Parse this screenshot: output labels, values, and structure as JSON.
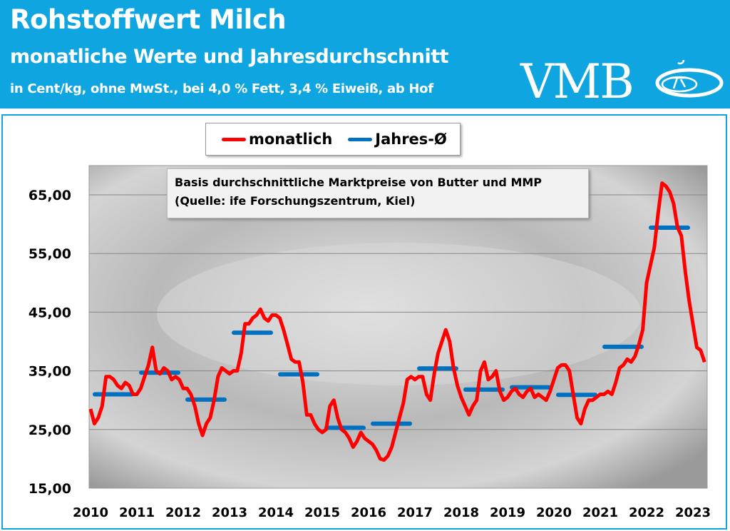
{
  "header": {
    "title": "Rohstoffwert Milch",
    "subtitle": "monatliche Werte und Jahresdurchschnitt",
    "unit_line": "in Cent/kg, ohne MwSt., bei 4,0 % Fett, 3,4 % Eiweiß, ab Hof",
    "logo": "VMB"
  },
  "colors": {
    "header": "#0ea5e0",
    "monthly": "#ff0000",
    "annual": "#0070c0"
  },
  "chart_data": {
    "type": "line",
    "note_lines": [
      "Basis durchschnittliche Marktpreise von Butter und MMP",
      "(Quelle: ife Forschungszentrum, Kiel)"
    ],
    "legend": {
      "placement": "top",
      "entries": [
        "monatlich",
        "Jahres-Ø"
      ]
    },
    "ylim": [
      15,
      70
    ],
    "yticks": [
      "15,00",
      "25,00",
      "35,00",
      "45,00",
      "55,00",
      "65,00"
    ],
    "ytick_values": [
      15,
      25,
      35,
      45,
      55,
      65
    ],
    "xticks": [
      "2010",
      "2011",
      "2012",
      "2013",
      "2014",
      "2015",
      "2016",
      "2017",
      "2018",
      "2019",
      "2020",
      "2021",
      "2022",
      "2023"
    ],
    "grid": true,
    "series": [
      {
        "name": "monatlich",
        "start": "2010-01",
        "frequency": "monthly",
        "values": [
          28.5,
          26,
          27,
          29,
          34,
          34,
          33.5,
          32.5,
          32,
          33,
          32.5,
          31,
          31,
          32,
          34,
          36,
          39,
          35,
          34.5,
          35.5,
          35,
          33.5,
          34,
          33.5,
          32,
          32,
          31,
          29,
          26,
          24,
          26,
          27,
          30,
          34,
          35.5,
          35,
          34.5,
          35,
          35,
          38,
          43,
          43,
          44,
          44.5,
          45.5,
          44,
          43.5,
          44.5,
          44.5,
          44,
          42,
          39.5,
          37,
          36.5,
          36.5,
          33,
          27.5,
          27.5,
          26,
          25,
          24.5,
          25,
          29,
          30,
          27,
          25,
          24.5,
          23.5,
          22,
          23,
          24.5,
          23.5,
          23,
          22.5,
          21.5,
          20,
          19.8,
          20.5,
          22,
          24.5,
          27,
          29.5,
          33.5,
          34,
          33.5,
          34,
          34,
          31,
          30,
          34.5,
          38,
          40,
          42,
          40,
          35.5,
          32.5,
          30.5,
          29,
          27.5,
          29,
          30,
          35,
          36.5,
          33.5,
          34,
          35,
          31.5,
          30,
          30.5,
          31.5,
          32,
          31,
          30.5,
          31.5,
          32,
          30.5,
          31,
          30.5,
          30,
          31.5,
          33.5,
          35.5,
          36,
          36,
          35,
          31,
          27,
          26,
          28.5,
          30,
          30,
          30.5,
          31,
          31,
          31.5,
          31,
          33,
          35.5,
          36,
          37,
          36.5,
          37.5,
          39.5,
          42,
          50,
          53,
          56,
          62,
          67,
          66.5,
          65.5,
          63.5,
          59.5,
          58,
          52,
          47,
          43,
          39,
          38.5,
          36.5
        ]
      },
      {
        "name": "Jahres-Ø",
        "years": [
          2010,
          2011,
          2012,
          2013,
          2014,
          2015,
          2016,
          2017,
          2018,
          2019,
          2020,
          2021,
          2022
        ],
        "values": [
          31,
          34.7,
          30.1,
          41.5,
          34.4,
          25.3,
          26,
          35.4,
          31.8,
          32.2,
          30.9,
          39.1,
          59.4
        ]
      }
    ]
  }
}
